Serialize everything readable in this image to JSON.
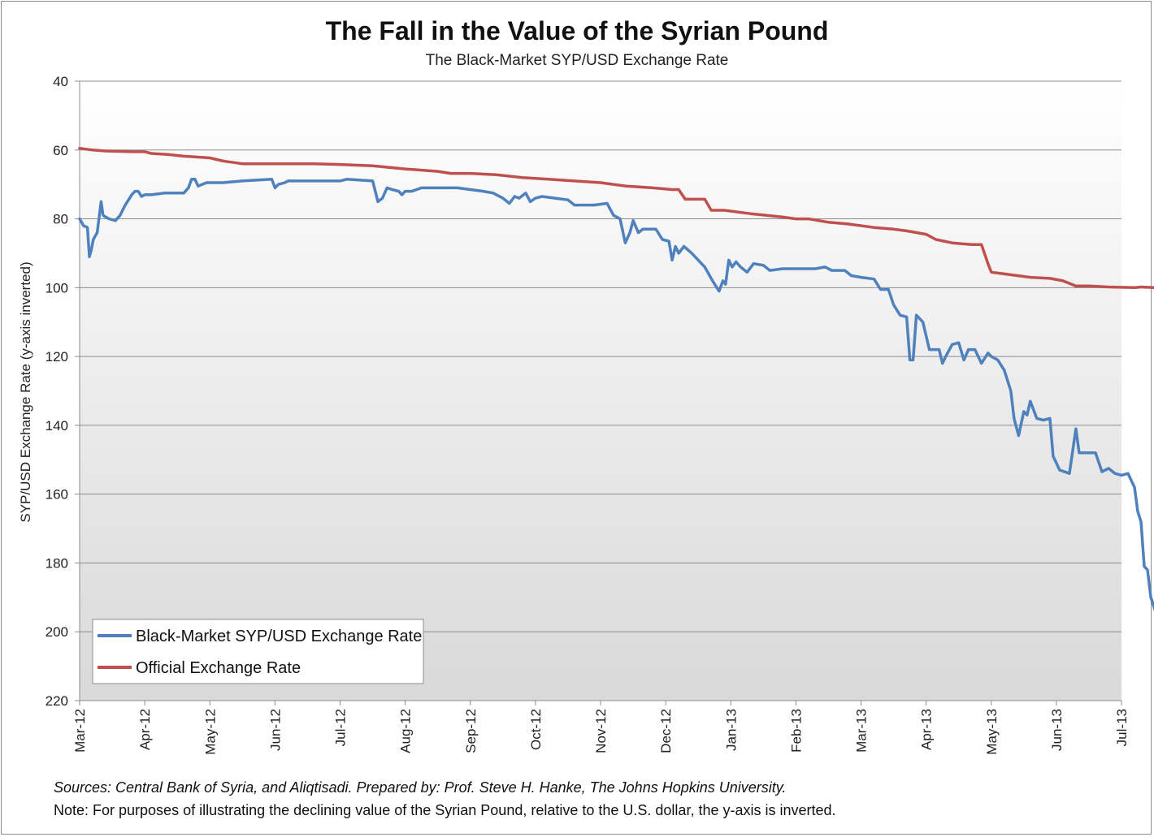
{
  "chart_data": {
    "type": "line",
    "title": "The Fall in the Value of the Syrian Pound",
    "subtitle": "The Black-Market SYP/USD Exchange Rate",
    "ylabel": "SYP/USD Exchange Rate (y-axis inverted)",
    "xlabel": "",
    "ylim": [
      40,
      220
    ],
    "y_inverted": true,
    "yticks": [
      "40",
      "60",
      "80",
      "100",
      "120",
      "140",
      "160",
      "180",
      "200",
      "220"
    ],
    "xticks": [
      "Mar-12",
      "Apr-12",
      "May-12",
      "Jun-12",
      "Jul-12",
      "Aug-12",
      "Sep-12",
      "Oct-12",
      "Nov-12",
      "Dec-12",
      "Jan-13",
      "Feb-13",
      "Mar-13",
      "Apr-13",
      "May-13",
      "Jun-13",
      "Jul-13"
    ],
    "grid": true,
    "legend_position": "bottom-left",
    "series": [
      {
        "name": "Black-Market SYP/USD Exchange Rate",
        "color": "#4f81bd",
        "points": [
          [
            0,
            80
          ],
          [
            0.06,
            82
          ],
          [
            0.12,
            82.5
          ],
          [
            0.15,
            91
          ],
          [
            0.18,
            89
          ],
          [
            0.21,
            86
          ],
          [
            0.27,
            84
          ],
          [
            0.33,
            75
          ],
          [
            0.36,
            79
          ],
          [
            0.45,
            80
          ],
          [
            0.55,
            80.5
          ],
          [
            0.62,
            79
          ],
          [
            0.7,
            76
          ],
          [
            0.8,
            73
          ],
          [
            0.85,
            72
          ],
          [
            0.9,
            72
          ],
          [
            0.95,
            73.5
          ],
          [
            1.0,
            73
          ],
          [
            1.1,
            73
          ],
          [
            1.3,
            72.5
          ],
          [
            1.6,
            72.5
          ],
          [
            1.67,
            71
          ],
          [
            1.72,
            68.5
          ],
          [
            1.77,
            68.5
          ],
          [
            1.82,
            70.5
          ],
          [
            1.88,
            70
          ],
          [
            1.95,
            69.5
          ],
          [
            2.2,
            69.5
          ],
          [
            2.5,
            69
          ],
          [
            2.95,
            68.5
          ],
          [
            3.0,
            71
          ],
          [
            3.05,
            70
          ],
          [
            3.15,
            69.5
          ],
          [
            3.2,
            69
          ],
          [
            3.5,
            69
          ],
          [
            4.0,
            69
          ],
          [
            4.1,
            68.5
          ],
          [
            4.5,
            69
          ],
          [
            4.58,
            75
          ],
          [
            4.65,
            74
          ],
          [
            4.72,
            71
          ],
          [
            4.8,
            71.5
          ],
          [
            4.9,
            72
          ],
          [
            4.95,
            73
          ],
          [
            5.0,
            72
          ],
          [
            5.1,
            72
          ],
          [
            5.25,
            71
          ],
          [
            5.5,
            71
          ],
          [
            5.8,
            71
          ],
          [
            6.0,
            71.5
          ],
          [
            6.2,
            72
          ],
          [
            6.35,
            72.5
          ],
          [
            6.5,
            74
          ],
          [
            6.6,
            75.5
          ],
          [
            6.68,
            73.5
          ],
          [
            6.75,
            74
          ],
          [
            6.85,
            72.5
          ],
          [
            6.92,
            75
          ],
          [
            7.0,
            74
          ],
          [
            7.1,
            73.5
          ],
          [
            7.3,
            74
          ],
          [
            7.5,
            74.5
          ],
          [
            7.6,
            76
          ],
          [
            7.9,
            76
          ],
          [
            8.1,
            75.5
          ],
          [
            8.2,
            79
          ],
          [
            8.3,
            80
          ],
          [
            8.38,
            87
          ],
          [
            8.45,
            84
          ],
          [
            8.5,
            80.5
          ],
          [
            8.58,
            84
          ],
          [
            8.65,
            83
          ],
          [
            8.85,
            83
          ],
          [
            8.95,
            86
          ],
          [
            9.05,
            86.5
          ],
          [
            9.1,
            92
          ],
          [
            9.15,
            88
          ],
          [
            9.2,
            90
          ],
          [
            9.28,
            88
          ],
          [
            9.4,
            90
          ],
          [
            9.6,
            94
          ],
          [
            9.72,
            98
          ],
          [
            9.82,
            101
          ],
          [
            9.88,
            98
          ],
          [
            9.92,
            99
          ],
          [
            9.97,
            92
          ],
          [
            10.02,
            94
          ],
          [
            10.08,
            92.5
          ],
          [
            10.15,
            94
          ],
          [
            10.25,
            95.5
          ],
          [
            10.35,
            93
          ],
          [
            10.5,
            93.5
          ],
          [
            10.6,
            95
          ],
          [
            10.8,
            94.5
          ],
          [
            11.0,
            94.5
          ],
          [
            11.3,
            94.5
          ],
          [
            11.45,
            94
          ],
          [
            11.55,
            95
          ],
          [
            11.75,
            95
          ],
          [
            11.85,
            96.5
          ],
          [
            12.0,
            97
          ],
          [
            12.2,
            97.5
          ],
          [
            12.3,
            100.5
          ],
          [
            12.42,
            100.5
          ],
          [
            12.5,
            105
          ],
          [
            12.6,
            108
          ],
          [
            12.7,
            108.5
          ],
          [
            12.75,
            121
          ],
          [
            12.8,
            121
          ],
          [
            12.85,
            108
          ],
          [
            12.95,
            110
          ],
          [
            13.0,
            114
          ],
          [
            13.05,
            118
          ],
          [
            13.2,
            118
          ],
          [
            13.25,
            122
          ],
          [
            13.3,
            120
          ],
          [
            13.4,
            116.5
          ],
          [
            13.5,
            116
          ],
          [
            13.58,
            121
          ],
          [
            13.65,
            118
          ],
          [
            13.75,
            118
          ],
          [
            13.85,
            122
          ],
          [
            13.95,
            119
          ],
          [
            14.0,
            120
          ],
          [
            14.1,
            121
          ],
          [
            14.2,
            124
          ],
          [
            14.3,
            130
          ],
          [
            14.35,
            138
          ],
          [
            14.42,
            143
          ],
          [
            14.5,
            136
          ],
          [
            14.55,
            137
          ],
          [
            14.6,
            133
          ],
          [
            14.7,
            138
          ],
          [
            14.8,
            138.5
          ],
          [
            14.9,
            138
          ],
          [
            14.95,
            149
          ],
          [
            15.05,
            153
          ],
          [
            15.2,
            154
          ],
          [
            15.3,
            141
          ],
          [
            15.35,
            148
          ],
          [
            15.45,
            148
          ],
          [
            15.6,
            148
          ],
          [
            15.7,
            153.5
          ],
          [
            15.8,
            152.5
          ],
          [
            15.9,
            154
          ],
          [
            16.0,
            154.5
          ],
          [
            16.1,
            154
          ],
          [
            16.2,
            158
          ],
          [
            16.25,
            165
          ],
          [
            16.3,
            168
          ],
          [
            16.35,
            181
          ],
          [
            16.4,
            182
          ],
          [
            16.45,
            190
          ],
          [
            16.52,
            194
          ],
          [
            16.58,
            186
          ],
          [
            16.65,
            186
          ],
          [
            16.7,
            192
          ],
          [
            16.75,
            200
          ],
          [
            16.8,
            201
          ],
          [
            16.85,
            203
          ],
          [
            16.95,
            203
          ]
        ]
      },
      {
        "name": "Official Exchange Rate",
        "color": "#c0504d",
        "points": [
          [
            0,
            59.5
          ],
          [
            0.2,
            60
          ],
          [
            0.4,
            60.3
          ],
          [
            0.8,
            60.5
          ],
          [
            1.0,
            60.5
          ],
          [
            1.1,
            61
          ],
          [
            1.35,
            61.3
          ],
          [
            1.6,
            61.8
          ],
          [
            2.0,
            62.3
          ],
          [
            2.2,
            63.2
          ],
          [
            2.5,
            64
          ],
          [
            2.8,
            64
          ],
          [
            3.2,
            64
          ],
          [
            3.6,
            64
          ],
          [
            4.0,
            64.2
          ],
          [
            4.5,
            64.6
          ],
          [
            5.0,
            65.5
          ],
          [
            5.5,
            66.2
          ],
          [
            5.7,
            66.8
          ],
          [
            6.0,
            66.8
          ],
          [
            6.4,
            67.2
          ],
          [
            6.8,
            68
          ],
          [
            7.2,
            68.5
          ],
          [
            7.6,
            69
          ],
          [
            8.0,
            69.5
          ],
          [
            8.4,
            70.5
          ],
          [
            8.8,
            71
          ],
          [
            9.1,
            71.5
          ],
          [
            9.2,
            71.5
          ],
          [
            9.3,
            74.3
          ],
          [
            9.5,
            74.3
          ],
          [
            9.6,
            74.3
          ],
          [
            9.7,
            77.5
          ],
          [
            9.9,
            77.5
          ],
          [
            10.1,
            78
          ],
          [
            10.3,
            78.5
          ],
          [
            10.55,
            79
          ],
          [
            10.8,
            79.5
          ],
          [
            11.0,
            80
          ],
          [
            11.2,
            80
          ],
          [
            11.5,
            81
          ],
          [
            11.8,
            81.5
          ],
          [
            12.2,
            82.5
          ],
          [
            12.5,
            83
          ],
          [
            12.7,
            83.5
          ],
          [
            12.85,
            84
          ],
          [
            13.0,
            84.5
          ],
          [
            13.15,
            86
          ],
          [
            13.4,
            87
          ],
          [
            13.7,
            87.5
          ],
          [
            13.85,
            87.5
          ],
          [
            13.95,
            93
          ],
          [
            14.0,
            95.5
          ],
          [
            14.2,
            96
          ],
          [
            14.4,
            96.5
          ],
          [
            14.6,
            97
          ],
          [
            14.9,
            97.3
          ],
          [
            15.1,
            98
          ],
          [
            15.3,
            99.5
          ],
          [
            15.5,
            99.5
          ],
          [
            15.8,
            99.8
          ],
          [
            16.2,
            100
          ],
          [
            16.3,
            99.8
          ],
          [
            16.5,
            100
          ],
          [
            16.7,
            101.5
          ],
          [
            16.85,
            102.5
          ],
          [
            17.0,
            103
          ]
        ]
      }
    ]
  },
  "footer": {
    "sources": "Sources: Central Bank of Syria, and Aliqtisadi. Prepared by: Prof. Steve H. Hanke, The Johns Hopkins University.",
    "note": "Note: For purposes of illustrating the declining value of the  Syrian Pound, relative to the U.S. dollar, the y-axis is inverted."
  }
}
